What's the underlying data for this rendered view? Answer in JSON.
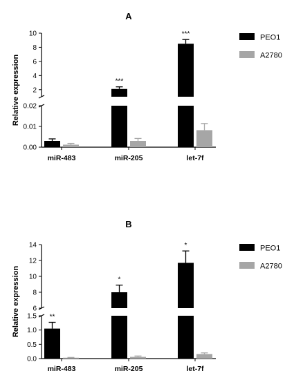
{
  "chart_data": [
    {
      "type": "bar",
      "title": "A",
      "ylabel": "Relative expression",
      "categories": [
        "miR-483",
        "miR-205",
        "let-7f"
      ],
      "axis_break": {
        "lower": {
          "ylim": [
            0,
            0.02
          ],
          "ticks": [
            "0.00",
            "0.01",
            "0.02"
          ]
        },
        "upper": {
          "ylim": [
            1,
            10
          ],
          "ticks": [
            "2",
            "4",
            "6",
            "8",
            "10"
          ]
        }
      },
      "series": [
        {
          "name": "PEO1",
          "color": "#000000",
          "values": [
            0.003,
            2.1,
            8.5
          ],
          "errors": [
            0.001,
            0.3,
            0.6
          ]
        },
        {
          "name": "A2780",
          "color": "#a6a6a6",
          "values": [
            0.0012,
            0.003,
            0.0082
          ],
          "errors": [
            0.0006,
            0.0012,
            0.0032
          ]
        }
      ],
      "significance": [
        "",
        "***",
        "***"
      ],
      "legend_position": "right"
    },
    {
      "type": "bar",
      "title": "B",
      "ylabel": "Relative expression",
      "categories": [
        "miR-483",
        "miR-205",
        "let-7f"
      ],
      "axis_break": {
        "lower": {
          "ylim": [
            0,
            1.5
          ],
          "ticks": [
            "0.0",
            "0.5",
            "1.0",
            "1.5"
          ]
        },
        "upper": {
          "ylim": [
            6,
            14
          ],
          "ticks": [
            "6",
            "8",
            "10",
            "12",
            "14"
          ]
        }
      },
      "series": [
        {
          "name": "PEO1",
          "color": "#000000",
          "values": [
            1.05,
            8.0,
            11.7
          ],
          "errors": [
            0.22,
            0.9,
            1.5
          ]
        },
        {
          "name": "A2780",
          "color": "#a6a6a6",
          "values": [
            0.03,
            0.06,
            0.16
          ],
          "errors": [
            0.01,
            0.03,
            0.04
          ]
        }
      ],
      "significance": [
        "**",
        "*",
        "*"
      ],
      "legend_position": "right"
    }
  ]
}
